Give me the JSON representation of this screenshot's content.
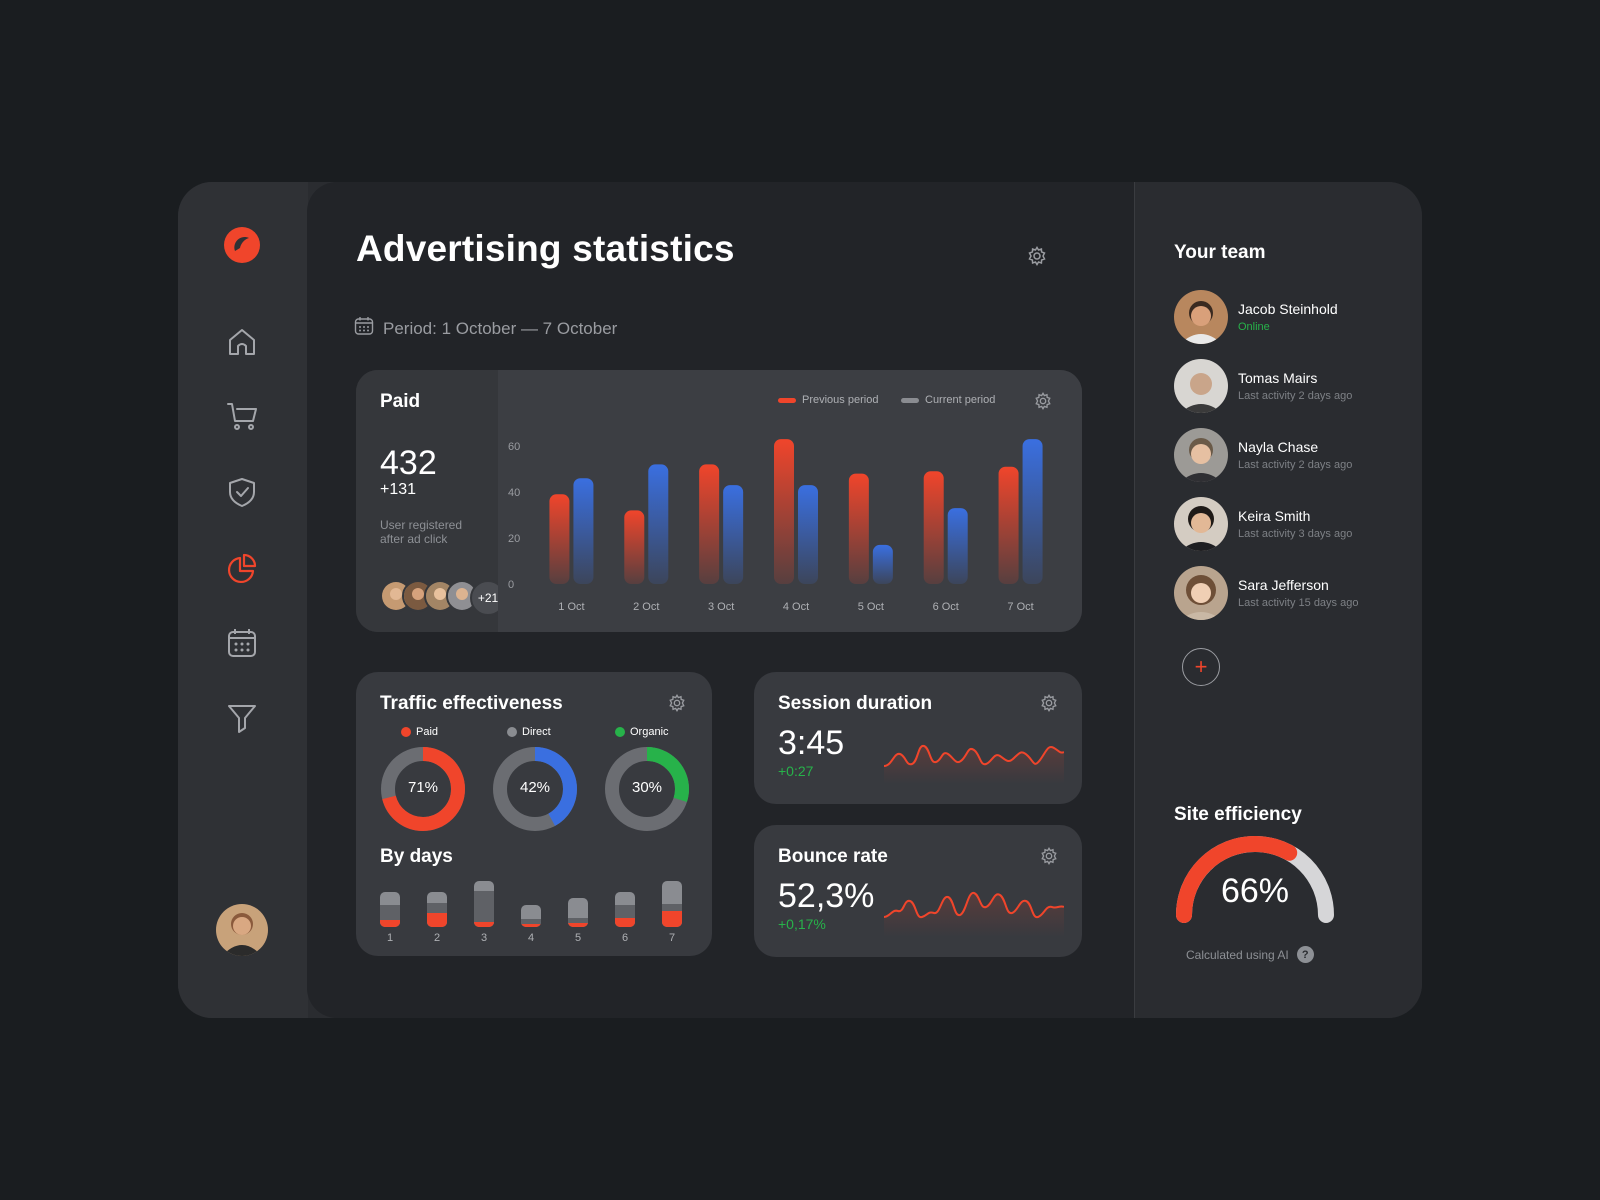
{
  "app": {
    "title": "Advertising statistics"
  },
  "nav": {
    "items": [
      {
        "name": "home",
        "icon": "home-icon"
      },
      {
        "name": "cart",
        "icon": "cart-icon"
      },
      {
        "name": "security",
        "icon": "shield-check-icon"
      },
      {
        "name": "statistics",
        "icon": "pie-chart-icon",
        "active": true
      },
      {
        "name": "calendar",
        "icon": "calendar-icon"
      },
      {
        "name": "filter",
        "icon": "filter-icon"
      }
    ]
  },
  "colors": {
    "accent": "#f0452b",
    "blue": "#3a6fe0",
    "green": "#27b24a",
    "gray": "#6b6d72"
  },
  "period": {
    "label": "Period: 1 October — 7 October"
  },
  "paid": {
    "title": "Paid",
    "value": "432",
    "delta": "+131",
    "description_line1": "User registered",
    "description_line2": "after ad click",
    "more_users": "+21"
  },
  "chart_data": {
    "type": "bar",
    "categories": [
      "1 Oct",
      "2 Oct",
      "3 Oct",
      "4 Oct",
      "5 Oct",
      "6 Oct",
      "7 Oct"
    ],
    "series": [
      {
        "name": "Previous period",
        "values": [
          39,
          32,
          52,
          63,
          48,
          49,
          51
        ]
      },
      {
        "name": "Current period",
        "values": [
          46,
          52,
          43,
          43,
          17,
          33,
          63
        ]
      }
    ],
    "yticks": [
      "60",
      "40",
      "20",
      "0"
    ],
    "ylim": [
      0,
      60
    ],
    "legend_position": "top-right"
  },
  "traffic": {
    "title": "Traffic effectiveness",
    "donuts": [
      {
        "label": "Paid",
        "value": "71%",
        "fraction": 0.71,
        "color": "#f0452b"
      },
      {
        "label": "Direct",
        "value": "42%",
        "fraction": 0.42,
        "color": "#3a6fe0"
      },
      {
        "label": "Organic",
        "value": "30%",
        "fraction": 0.3,
        "color": "#27b24a"
      }
    ],
    "by_days_title": "By days",
    "by_days": [
      {
        "label": "1",
        "total": 0.72,
        "red": 0.2,
        "mid": 0.45
      },
      {
        "label": "2",
        "total": 0.72,
        "red": 0.4,
        "mid": 0.3
      },
      {
        "label": "3",
        "total": 0.95,
        "red": 0.1,
        "mid": 0.7
      },
      {
        "label": "4",
        "total": 0.45,
        "red": 0.15,
        "mid": 0.2
      },
      {
        "label": "5",
        "total": 0.6,
        "red": 0.15,
        "mid": 0.15
      },
      {
        "label": "6",
        "total": 0.72,
        "red": 0.25,
        "mid": 0.4
      },
      {
        "label": "7",
        "total": 0.95,
        "red": 0.35,
        "mid": 0.15
      }
    ]
  },
  "session": {
    "title": "Session duration",
    "value": "3:45",
    "delta": "+0:27"
  },
  "bounce": {
    "title": "Bounce rate",
    "value": "52,3%",
    "delta": "+0,17%"
  },
  "team": {
    "title": "Your team",
    "members": [
      {
        "name": "Jacob Steinhold",
        "status": "Online",
        "online": true
      },
      {
        "name": "Tomas Mairs",
        "status": "Last activity 2 days ago"
      },
      {
        "name": "Nayla Chase",
        "status": "Last activity 2 days ago"
      },
      {
        "name": "Keira Smith",
        "status": "Last activity 3 days ago"
      },
      {
        "name": "Sara Jefferson",
        "status": "Last activity 15 days ago"
      }
    ],
    "add_label": "+"
  },
  "efficiency": {
    "title": "Site efficiency",
    "value": "66%",
    "fraction": 0.66,
    "note": "Calculated using AI",
    "help": "?"
  }
}
